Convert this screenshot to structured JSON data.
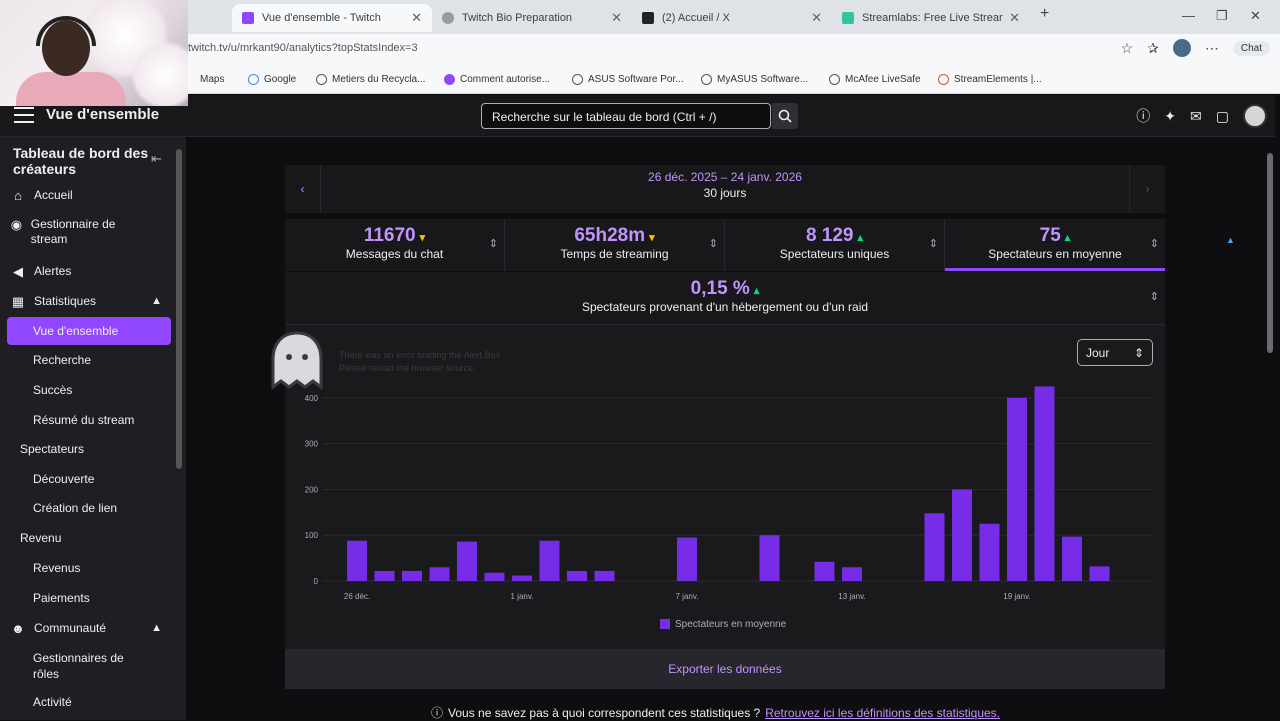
{
  "browser": {
    "tabs": [
      {
        "label": "Vue d'ensemble - Twitch",
        "active": true,
        "color": "#9147ff"
      },
      {
        "label": "Twitch Bio Preparation",
        "active": false,
        "color": "#9a9a9a"
      },
      {
        "label": "(2) Accueil / X",
        "active": false,
        "color": "#222222"
      },
      {
        "label": "Streamlabs: Free Live Streaming &",
        "active": false,
        "color": "#31c3a2"
      }
    ],
    "url": "twitch.tv/u/mrkant90/analytics?topStatsIndex=3",
    "chat_label": "Chat",
    "bookmarks": [
      "Maps",
      "Google",
      "Metiers du Recycla...",
      "Comment autorise...",
      "ASUS Software Por...",
      "MyASUS Software...",
      "McAfee LiveSafe",
      "StreamElements |..."
    ]
  },
  "topbar": {
    "title": "Vue d'ensemble",
    "search_placeholder": "Recherche sur le tableau de bord (Ctrl + /)"
  },
  "sidebar": {
    "header": "Tableau de bord des créateurs",
    "items": {
      "accueil": "Accueil",
      "gestionnaire": "Gestionnaire de stream",
      "alertes": "Alertes",
      "statistiques": "Statistiques",
      "vue": "Vue d'ensemble",
      "recherche": "Recherche",
      "succes": "Succès",
      "resume": "Résumé du stream",
      "spectateurs": "Spectateurs",
      "decouverte": "Découverte",
      "creation": "Création de lien",
      "revenu": "Revenu",
      "revenus": "Revenus",
      "paiements": "Paiements",
      "communaute": "Communauté",
      "roles": "Gestionnaires de rôles",
      "activite": "Activité"
    }
  },
  "daterange": {
    "range": "26 déc. 2025 – 24 janv. 2026",
    "days": "30 jours"
  },
  "stats": [
    {
      "value": "11670",
      "trend": "▾",
      "trend_color": "#ffbf00",
      "label": "Messages du chat"
    },
    {
      "value": "65h28m",
      "trend": "▾",
      "trend_color": "#ffbf00",
      "label": "Temps de streaming"
    },
    {
      "value": "8 129",
      "trend": "▴",
      "trend_color": "#00db84",
      "label": "Spectateurs uniques"
    },
    {
      "value": "75",
      "trend": "▴",
      "trend_color": "#00db84",
      "label": "Spectateurs en moyenne"
    }
  ],
  "stat_host": {
    "value": "0,15 %",
    "trend": "▴",
    "label": "Spectateurs provenant d'un hébergement ou d'un raid"
  },
  "chart_select": "Jour",
  "alert_error": {
    "line1": "There was an error loading the Alert Box",
    "line2": "Please reload the browser source."
  },
  "chart_data": {
    "type": "bar",
    "color": "#772ce8",
    "categories": [
      "26 déc.",
      "27",
      "28",
      "29",
      "30",
      "31",
      "1 janv.",
      "2",
      "3",
      "4",
      "5",
      "6",
      "7 janv.",
      "8",
      "9",
      "10",
      "11",
      "12",
      "13 janv.",
      "14",
      "15",
      "16",
      "17",
      "18",
      "19 janv.",
      "20",
      "21",
      "22",
      "23",
      "24"
    ],
    "x_tick_labels": [
      "26 déc.",
      "1 janv.",
      "7 janv.",
      "13 janv.",
      "19 janv."
    ],
    "series": [
      {
        "name": "Spectateurs en moyenne",
        "values": [
          88,
          22,
          22,
          30,
          86,
          18,
          12,
          88,
          22,
          22,
          0,
          0,
          95,
          0,
          0,
          100,
          0,
          42,
          30,
          0,
          0,
          148,
          200,
          125,
          400,
          425,
          97,
          32,
          0,
          0
        ]
      }
    ],
    "ylim": [
      0,
      450
    ],
    "yticks": [
      0,
      100,
      200,
      300,
      400
    ],
    "grid": true,
    "legend_position": "bottom"
  },
  "export_label": "Exporter les données",
  "footer": {
    "question": "Vous ne savez pas à quoi correspondent ces statistiques ?",
    "link": "Retrouvez ici les définitions des statistiques."
  }
}
